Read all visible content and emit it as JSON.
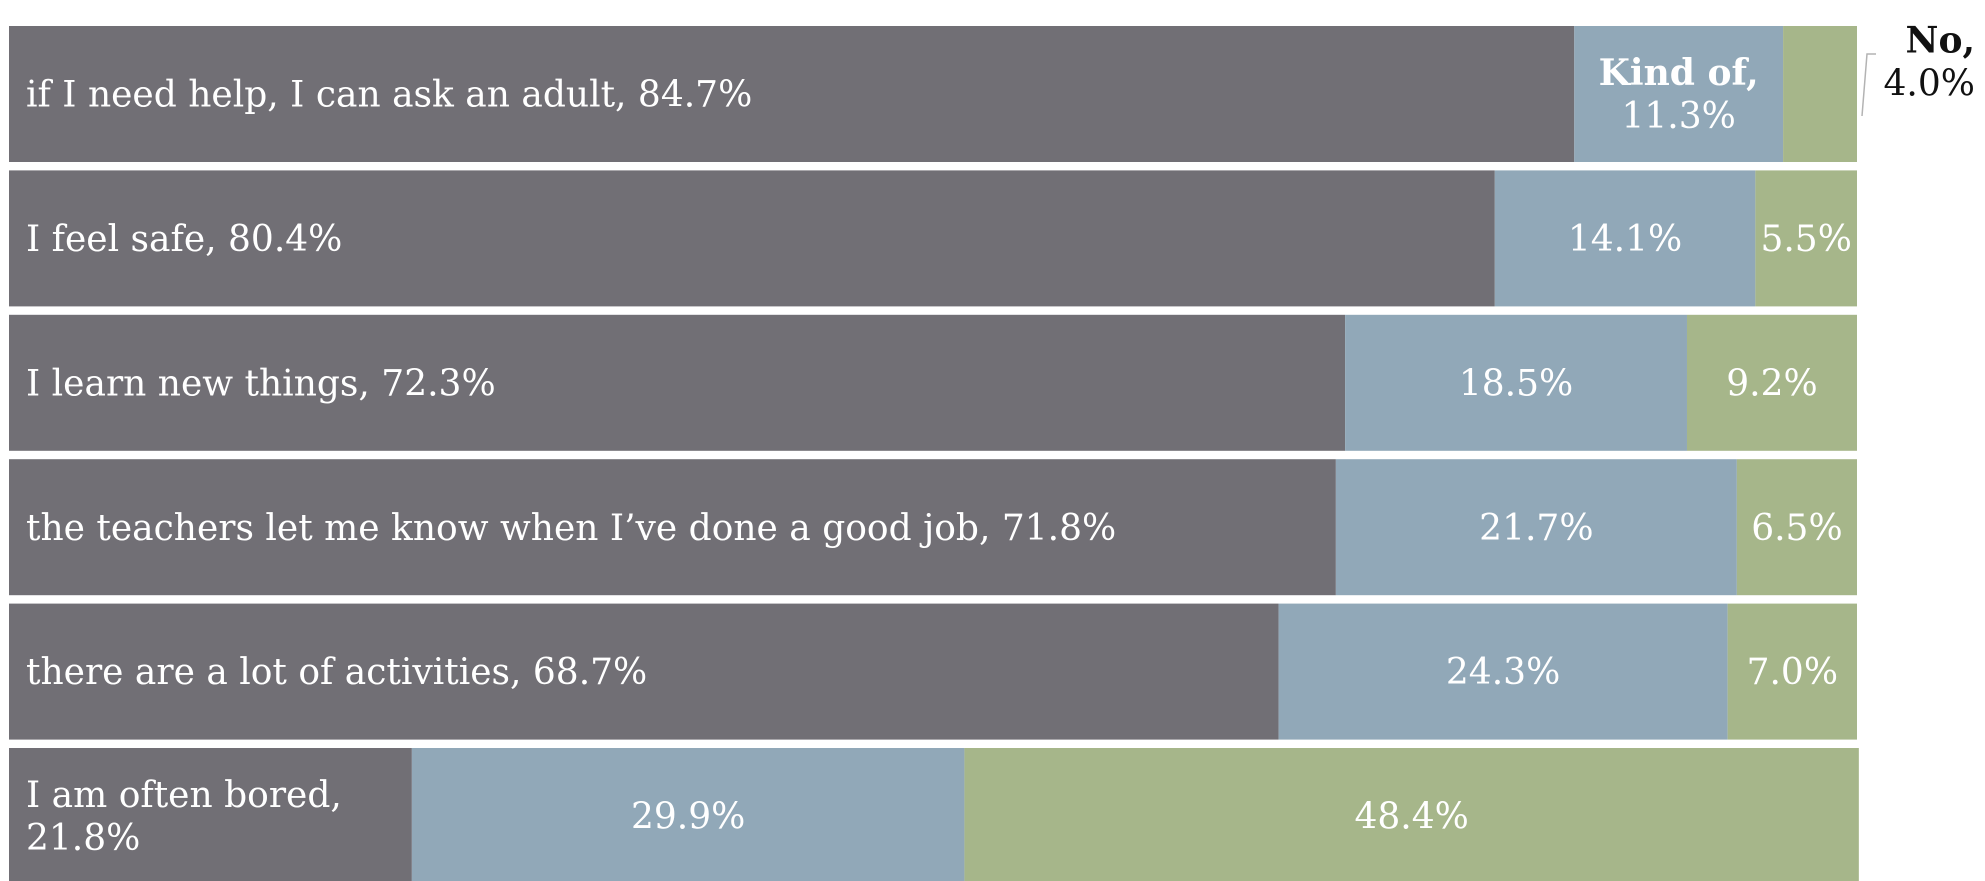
{
  "chart_data": {
    "type": "bar",
    "orientation": "horizontal",
    "stacked": true,
    "normalized_to_100": true,
    "categories": [
      "if I need help, I can ask an adult",
      "I feel safe",
      "I learn new things",
      "the teachers let me know when I’ve done a good job",
      "there are a lot of activities",
      "I am often bored"
    ],
    "series": [
      {
        "key": "yes",
        "color": "#716f75",
        "values": [
          84.7,
          80.4,
          72.3,
          71.8,
          68.7,
          21.8
        ],
        "labels": [
          "84.7%",
          "80.4%",
          "72.3%",
          "71.8%",
          "68.7%",
          "21.8%"
        ]
      },
      {
        "key": "kind_of",
        "name": "Kind of,",
        "color": "#91a8b8",
        "values": [
          11.3,
          14.1,
          18.5,
          21.7,
          24.3,
          29.9
        ],
        "labels": [
          "11.3%",
          "14.1%",
          "18.5%",
          "21.7%",
          "24.3%",
          "29.9%"
        ]
      },
      {
        "key": "no",
        "name": "No,",
        "color": "#a6b68a",
        "values": [
          4.0,
          5.5,
          9.2,
          6.5,
          7.0,
          48.4
        ],
        "labels": [
          "4.0%",
          "5.5%",
          "9.2%",
          "6.5%",
          "7.0%",
          "48.4%"
        ]
      }
    ],
    "label_color": "#ffffff",
    "callout_color": "#111111",
    "callout_line_color": "#b3b3b3",
    "xlim": [
      0,
      100
    ],
    "legend": "inline labels on first bar",
    "grid": false
  }
}
